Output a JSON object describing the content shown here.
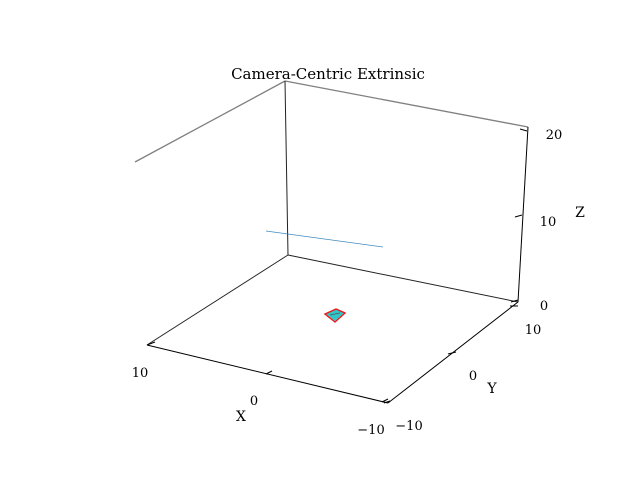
{
  "chart_data": {
    "type": "3d-line",
    "title": "Camera-Centric Extrinsic",
    "xlabel": "X",
    "ylabel": "Y",
    "zlabel": "Z",
    "xlim": [
      -10,
      10
    ],
    "ylim": [
      -10,
      10
    ],
    "zlim": [
      0,
      20
    ],
    "x_ticks": [
      "10",
      "0",
      "−10"
    ],
    "y_ticks": [
      "10",
      "0",
      "−10"
    ],
    "z_ticks": [
      "20",
      "10",
      "0"
    ],
    "colors": {
      "axis_line": "#000000",
      "back_edge": "#808080",
      "board_edge": "#e8191c",
      "board_fill": "#31c6c8",
      "ray": "#1f77b4"
    }
  }
}
